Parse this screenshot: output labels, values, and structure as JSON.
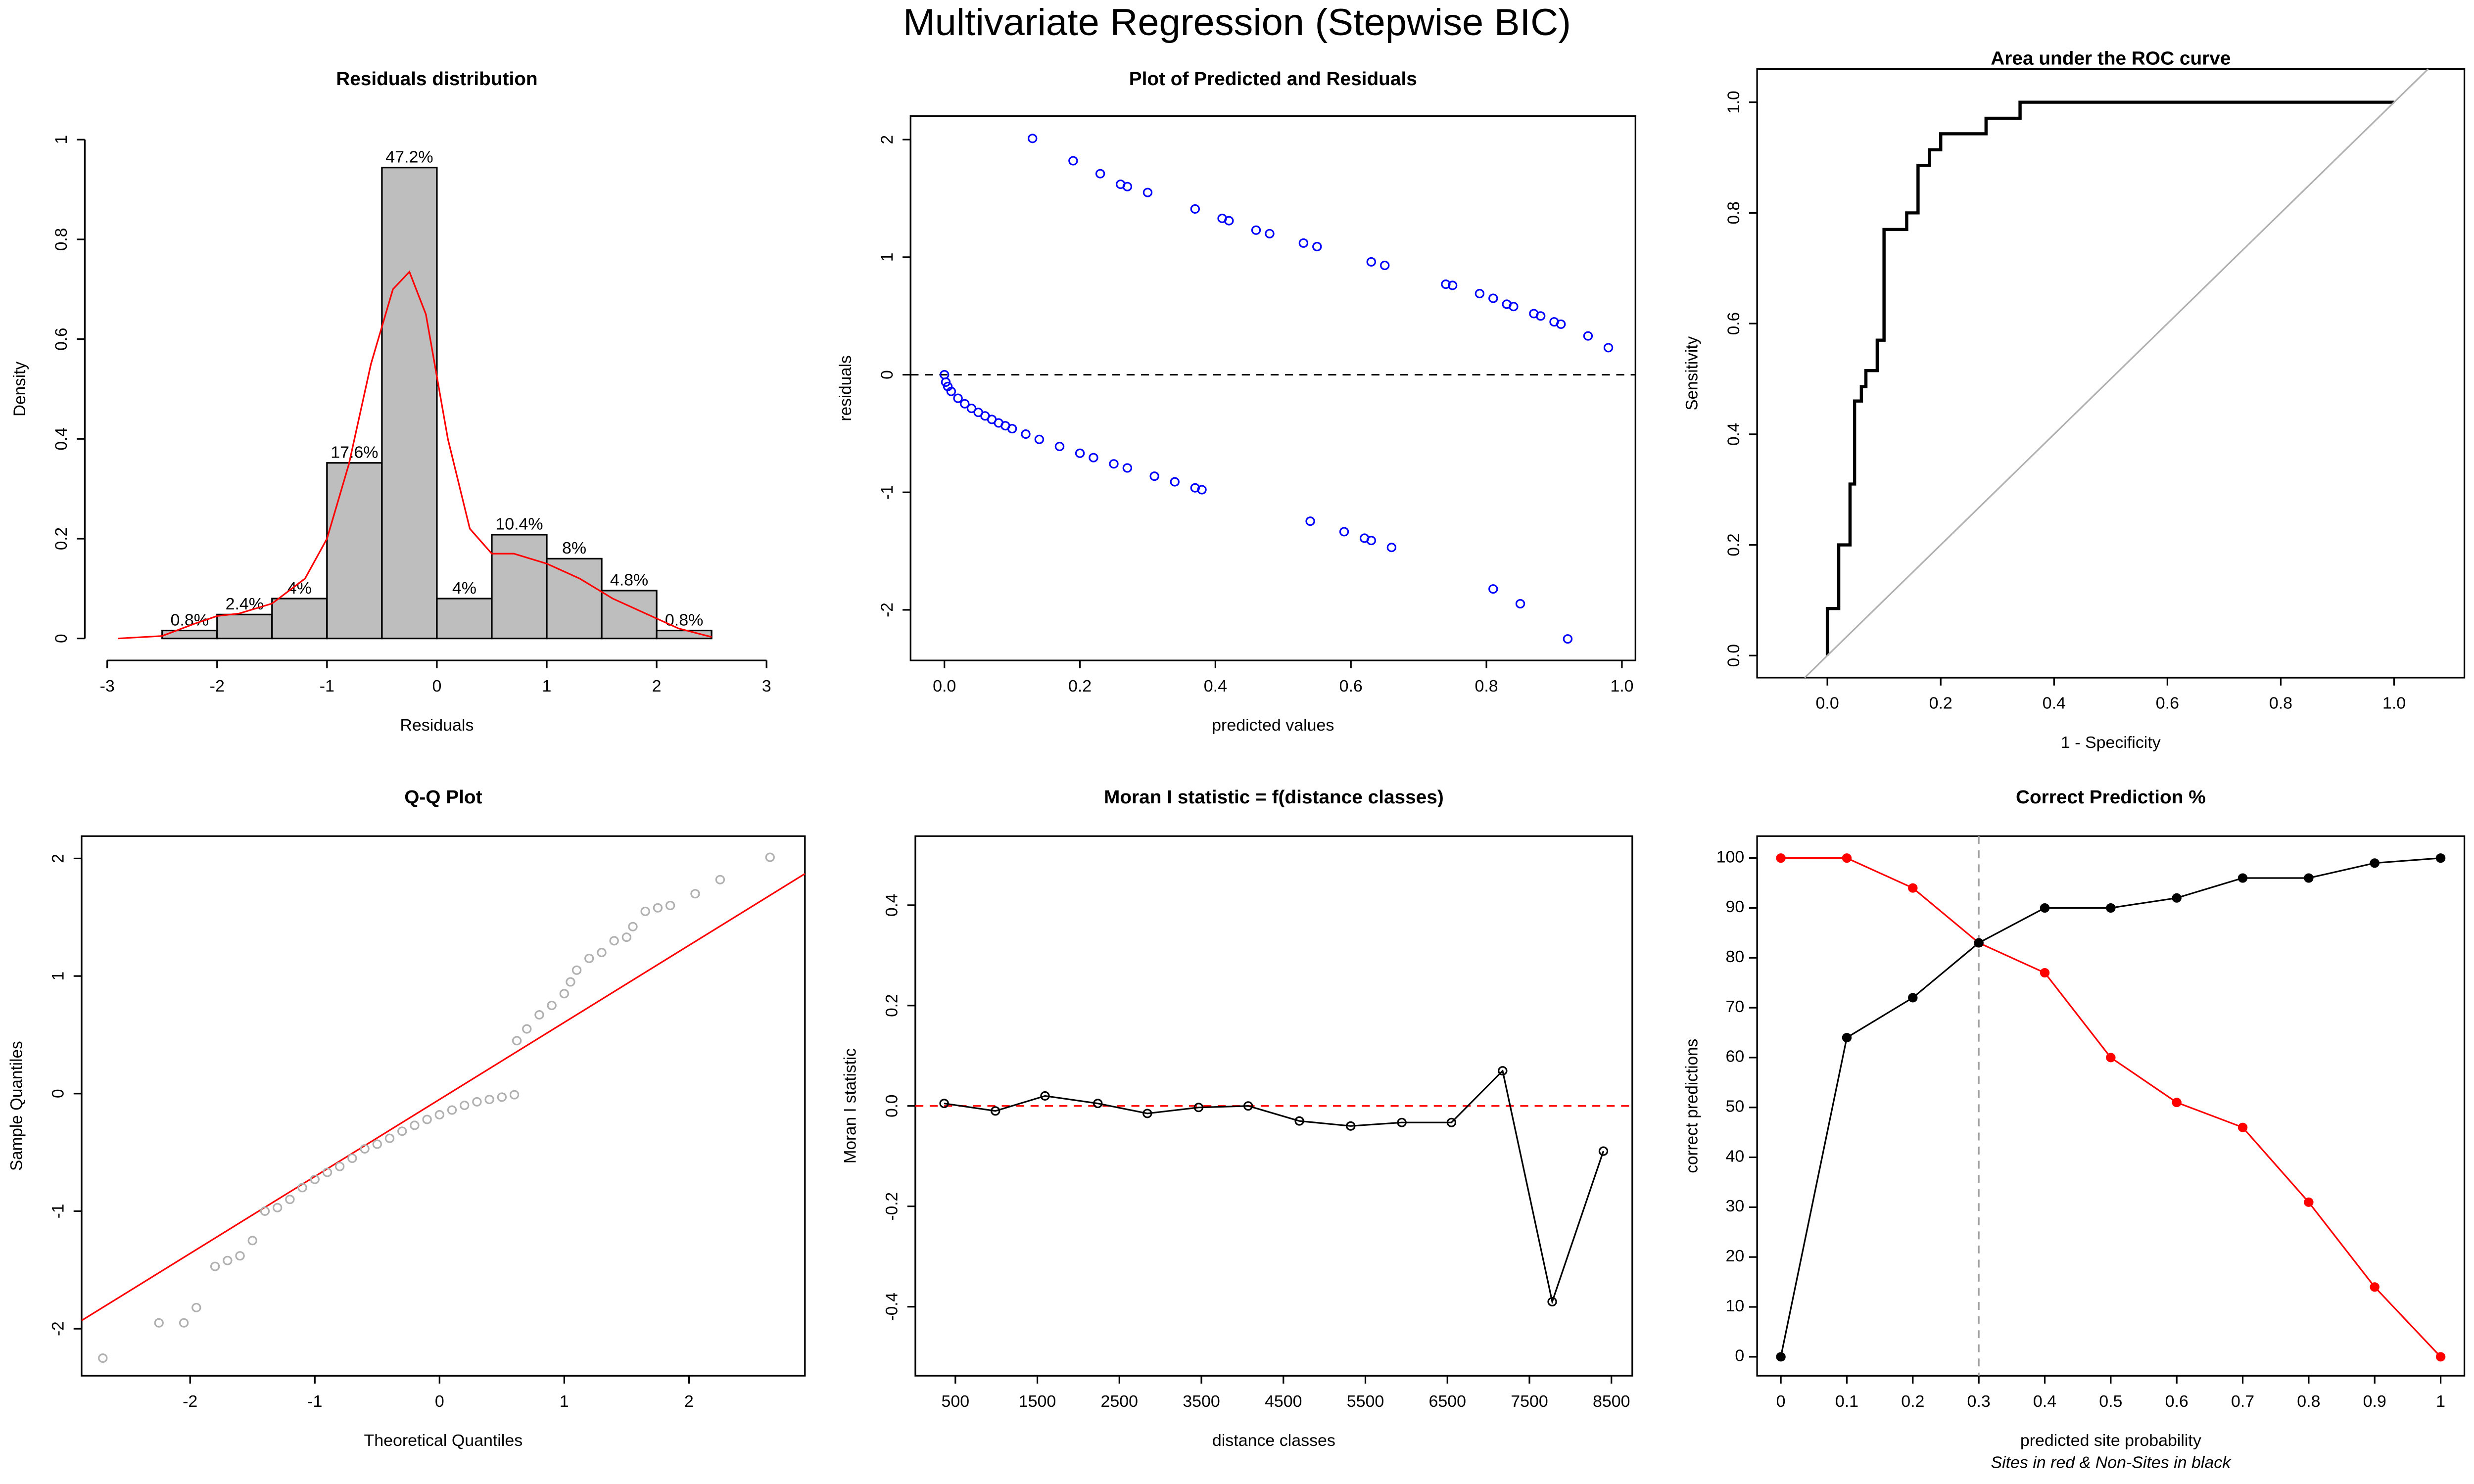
{
  "title": "Multivariate Regression (Stepwise BIC)",
  "chart_data": [
    {
      "type": "histogram",
      "title": "Residuals distribution",
      "x_label": "Residuals",
      "y_label": "Density",
      "bins": [
        -2.5,
        -2,
        -1.5,
        -1,
        -0.5,
        0,
        0.5,
        1,
        1.5,
        2,
        2.5
      ],
      "values": [
        0.016,
        0.048,
        0.08,
        0.352,
        0.944,
        0.08,
        0.208,
        0.16,
        0.096,
        0.016
      ],
      "bar_labels": [
        "0.8%",
        "2.4%",
        "4%",
        "17.6%",
        "47.2%",
        "4%",
        "10.4%",
        "8%",
        "4.8%",
        "0.8%"
      ],
      "color": "#bebebe",
      "density": {
        "color": "#ff0000",
        "x": [
          -2.9,
          -2.5,
          -2.2,
          -2.0,
          -1.8,
          -1.5,
          -1.2,
          -1.0,
          -0.8,
          -0.6,
          -0.4,
          -0.25,
          -0.1,
          0.1,
          0.3,
          0.5,
          0.7,
          1.0,
          1.3,
          1.6,
          1.9,
          2.2,
          2.5
        ],
        "values": [
          0.0,
          0.005,
          0.03,
          0.045,
          0.05,
          0.07,
          0.12,
          0.2,
          0.35,
          0.55,
          0.7,
          0.735,
          0.65,
          0.4,
          0.22,
          0.17,
          0.17,
          0.15,
          0.12,
          0.08,
          0.05,
          0.02,
          0.003
        ]
      },
      "xlim": [
        -3,
        3
      ],
      "xticks": [
        -3,
        -2,
        -1,
        0,
        1,
        2,
        3
      ],
      "ylim": [
        0,
        1
      ],
      "yticks": [
        0,
        0.2,
        0.4,
        0.6,
        0.8,
        1
      ]
    },
    {
      "type": "scatter",
      "title": "Plot of Predicted and Residuals",
      "x_label": "predicted values",
      "y_label": "residuals",
      "color": "#0000ff",
      "hline": {
        "value": 0,
        "color": "#000000"
      },
      "x": [
        0.13,
        0.19,
        0.23,
        0.26,
        0.27,
        0.3,
        0.37,
        0.41,
        0.42,
        0.46,
        0.48,
        0.53,
        0.55,
        0.63,
        0.65,
        0.74,
        0.75,
        0.79,
        0.81,
        0.83,
        0.84,
        0.87,
        0.88,
        0.9,
        0.91,
        0.95,
        0.98,
        0.0,
        0.002,
        0.005,
        0.01,
        0.02,
        0.03,
        0.04,
        0.05,
        0.06,
        0.07,
        0.08,
        0.09,
        0.1,
        0.12,
        0.14,
        0.17,
        0.2,
        0.22,
        0.25,
        0.27,
        0.31,
        0.34,
        0.37,
        0.38,
        0.54,
        0.59,
        0.62,
        0.63,
        0.66,
        0.81,
        0.85,
        0.92
      ],
      "values": [
        2.01,
        1.82,
        1.71,
        1.62,
        1.6,
        1.55,
        1.41,
        1.33,
        1.31,
        1.23,
        1.2,
        1.12,
        1.09,
        0.96,
        0.93,
        0.77,
        0.76,
        0.69,
        0.65,
        0.6,
        0.58,
        0.52,
        0.5,
        0.45,
        0.43,
        0.33,
        0.23,
        0.0,
        -0.063,
        -0.1,
        -0.142,
        -0.2,
        -0.247,
        -0.286,
        -0.32,
        -0.35,
        -0.38,
        -0.41,
        -0.434,
        -0.459,
        -0.505,
        -0.55,
        -0.61,
        -0.668,
        -0.705,
        -0.758,
        -0.793,
        -0.863,
        -0.911,
        -0.962,
        -0.978,
        -1.246,
        -1.335,
        -1.39,
        -1.41,
        -1.469,
        -1.822,
        -1.948,
        -2.247
      ],
      "xlim": [
        -0.05,
        1.02
      ],
      "xticks": [
        {
          "value": 0,
          "label": "0.0"
        },
        0.2,
        0.4,
        0.6,
        0.8,
        {
          "value": 1,
          "label": "1.0"
        }
      ],
      "ylim": [
        -2.43,
        2.2
      ],
      "yticks": [
        -2,
        -1,
        0,
        1,
        2
      ]
    },
    {
      "type": "line",
      "title": "Area under the ROC curve",
      "x_label": "1 - Specificity",
      "y_label": "Sensitivity",
      "series": [
        {
          "color": "#000000",
          "width": 2,
          "x": [
            0,
            0,
            0.02,
            0.02,
            0.04,
            0.04,
            0.048,
            0.048,
            0.06,
            0.06,
            0.068,
            0.068,
            0.088,
            0.088,
            0.1,
            0.1,
            0.14,
            0.14,
            0.16,
            0.16,
            0.18,
            0.18,
            0.2,
            0.2,
            0.28,
            0.28,
            0.34,
            0.34,
            1.0
          ],
          "values": [
            0,
            0.085,
            0.085,
            0.2,
            0.2,
            0.31,
            0.31,
            0.46,
            0.46,
            0.486,
            0.486,
            0.515,
            0.515,
            0.57,
            0.57,
            0.77,
            0.77,
            0.8,
            0.8,
            0.886,
            0.886,
            0.914,
            0.914,
            0.943,
            0.943,
            0.971,
            0.971,
            1.0,
            1.0
          ]
        },
        {
          "color": "#b0b0b0",
          "width": 1,
          "x": [
            -0.04,
            1.06
          ],
          "values": [
            -0.04,
            1.06
          ]
        }
      ],
      "xlim": [
        -0.124,
        1.124
      ],
      "xticks": [
        {
          "value": 0,
          "label": "0.0"
        },
        0.2,
        0.4,
        0.6,
        0.8,
        {
          "value": 1,
          "label": "1.0"
        }
      ],
      "ylim": [
        -0.04,
        1.06
      ],
      "yticks": [
        {
          "value": 0,
          "label": "0.0"
        },
        0.2,
        0.4,
        0.6,
        0.8,
        {
          "value": 1,
          "label": "1.0"
        }
      ]
    },
    {
      "type": "scatter",
      "title": "Q-Q Plot",
      "x_label": "Theoretical Quantiles",
      "y_label": "Sample Quantiles",
      "color": "#b0b0b0",
      "x": [
        -2.7,
        -2.25,
        -2.05,
        -1.95,
        -1.8,
        -1.7,
        -1.6,
        -1.5,
        -1.4,
        -1.3,
        -1.2,
        -1.1,
        -1.0,
        -0.9,
        -0.8,
        -0.7,
        -0.6,
        -0.5,
        -0.4,
        -0.3,
        -0.2,
        -0.1,
        0,
        0.1,
        0.2,
        0.3,
        0.4,
        0.5,
        0.6,
        0.62,
        0.7,
        0.8,
        0.9,
        1.0,
        1.05,
        1.1,
        1.2,
        1.3,
        1.4,
        1.5,
        1.55,
        1.65,
        1.75,
        1.85,
        2.05,
        2.25,
        2.65
      ],
      "values": [
        -2.25,
        -1.95,
        -1.95,
        -1.82,
        -1.47,
        -1.42,
        -1.38,
        -1.25,
        -1.0,
        -0.97,
        -0.9,
        -0.8,
        -0.73,
        -0.67,
        -0.62,
        -0.55,
        -0.47,
        -0.43,
        -0.38,
        -0.32,
        -0.27,
        -0.22,
        -0.18,
        -0.14,
        -0.1,
        -0.07,
        -0.05,
        -0.03,
        -0.01,
        0.45,
        0.55,
        0.67,
        0.75,
        0.85,
        0.95,
        1.05,
        1.15,
        1.2,
        1.3,
        1.33,
        1.42,
        1.55,
        1.58,
        1.6,
        1.7,
        1.82,
        2.01
      ],
      "series": [
        {
          "color": "#ff0000",
          "width": 1,
          "x": [
            -2.87,
            2.93
          ],
          "values": [
            -1.93,
            1.87
          ]
        }
      ],
      "xlim": [
        -2.87,
        2.93
      ],
      "xticks": [
        -2,
        -1,
        0,
        1,
        2
      ],
      "ylim": [
        -2.4,
        2.19
      ],
      "yticks": [
        -2,
        -1,
        0,
        1,
        2
      ]
    },
    {
      "type": "line",
      "title": "Moran I statistic = f(distance classes)",
      "x_label": "distance classes",
      "y_label": "Moran I statistic",
      "hline": {
        "value": 0,
        "color": "#ff0000"
      },
      "series": [
        {
          "color": "#000000",
          "width": 1,
          "markers": "open",
          "x": [
            363,
            988,
            1593,
            2237,
            2841,
            3466,
            4071,
            4695,
            5320,
            5944,
            6549,
            7173,
            7778,
            8402
          ],
          "values": [
            0.005,
            -0.01,
            0.02,
            0.005,
            -0.015,
            -0.003,
            0.0,
            -0.03,
            -0.04,
            -0.033,
            -0.033,
            0.07,
            -0.39,
            -0.09
          ]
        }
      ],
      "xlim": [
        12,
        8754
      ],
      "xticks": [
        500,
        1500,
        2500,
        3500,
        4500,
        5500,
        6500,
        7500,
        8500
      ],
      "ylim": [
        -0.5375,
        0.5375
      ],
      "yticks": [
        -0.4,
        -0.2,
        {
          "value": 0,
          "label": "0.0"
        },
        0.2,
        0.4
      ]
    },
    {
      "type": "line",
      "title": "Correct Prediction %",
      "x_label": "predicted site probability",
      "caption": "Sites in red & Non-Sites in black",
      "y_label": "correct predictions",
      "vline": 0.3,
      "series": [
        {
          "color": "#ff0000",
          "width": 1,
          "markers": "filled",
          "x": [
            0,
            0.1,
            0.2,
            0.3,
            0.4,
            0.5,
            0.6,
            0.7,
            0.8,
            0.9,
            1
          ],
          "values": [
            100,
            100,
            94,
            83,
            77,
            60,
            51,
            46,
            31,
            14,
            0
          ]
        },
        {
          "color": "#000000",
          "width": 1,
          "markers": "filled",
          "x": [
            0,
            0.1,
            0.2,
            0.3,
            0.4,
            0.5,
            0.6,
            0.7,
            0.8,
            0.9,
            1
          ],
          "values": [
            0,
            64,
            72,
            83,
            90,
            90,
            92,
            96,
            96,
            99,
            100
          ]
        }
      ],
      "xlim": [
        -0.036,
        1.036
      ],
      "xticks": [
        0,
        0.1,
        0.2,
        0.3,
        0.4,
        0.5,
        0.6,
        0.7,
        0.8,
        0.9,
        1
      ],
      "ylim": [
        -3.8,
        104.4
      ],
      "yticks": [
        0,
        10,
        20,
        30,
        40,
        50,
        60,
        70,
        80,
        90,
        100
      ]
    }
  ]
}
